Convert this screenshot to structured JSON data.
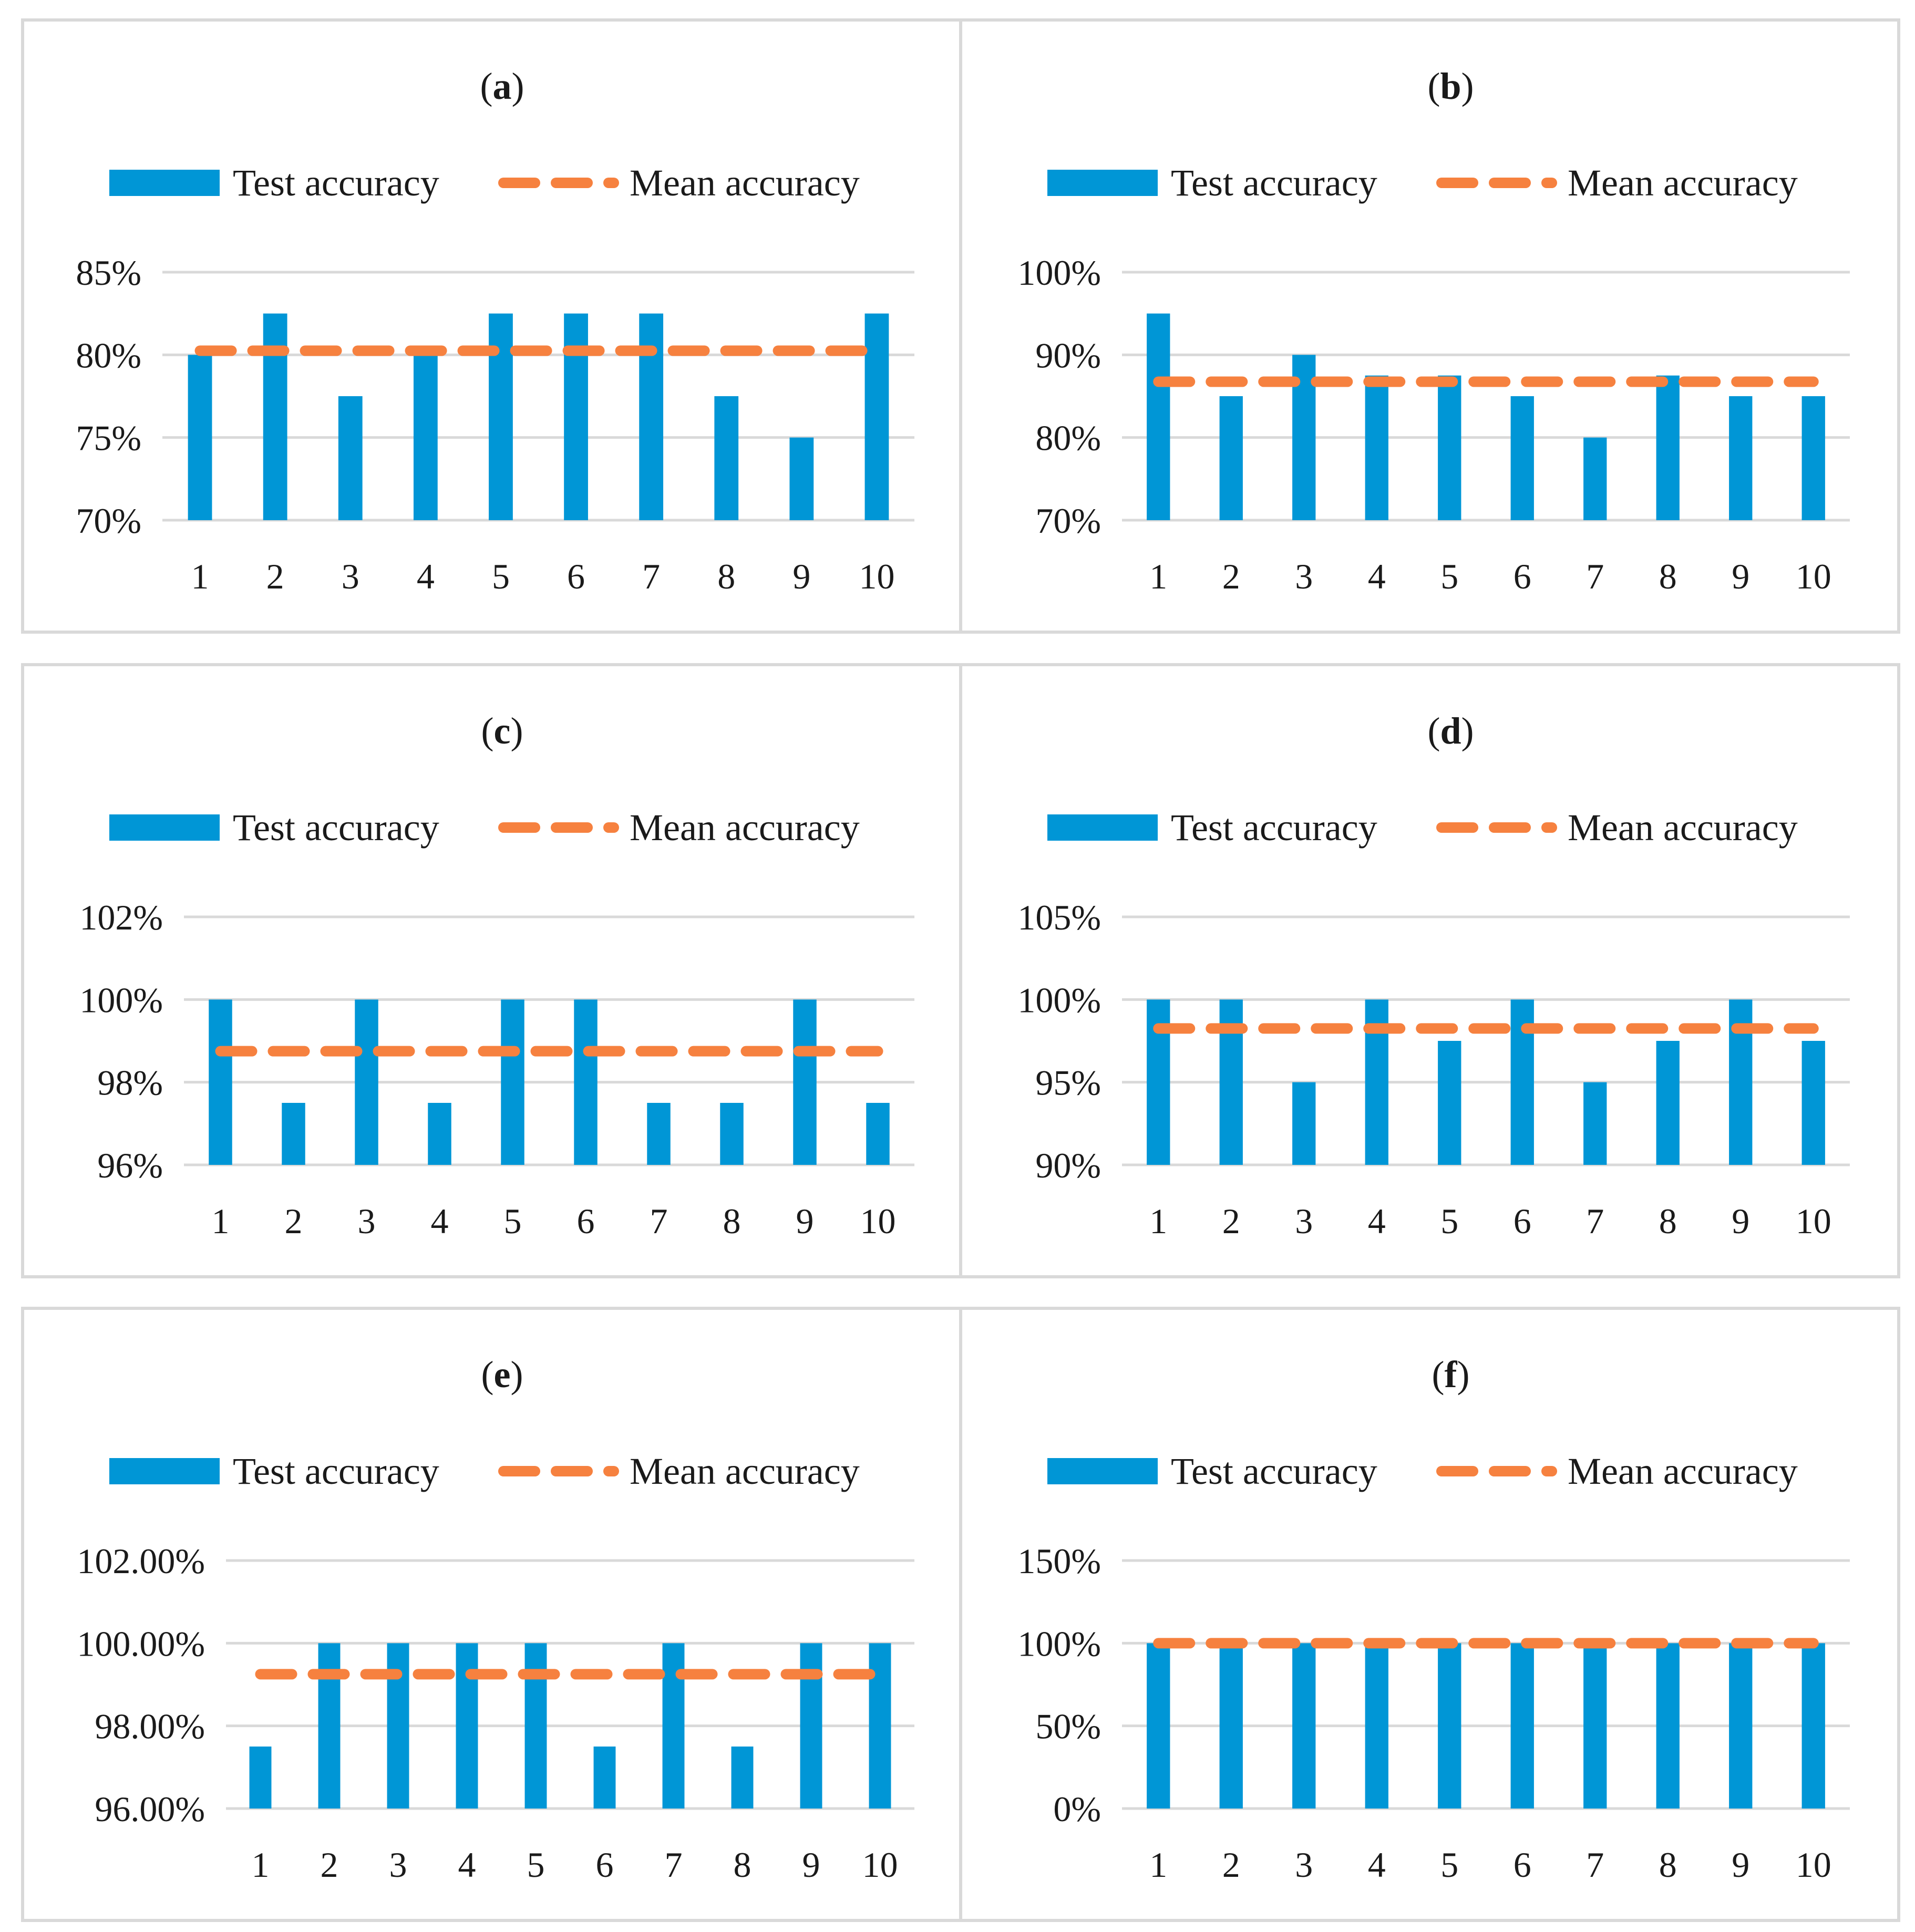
{
  "legend": {
    "bar_label": "Test accuracy",
    "line_label": "Mean accuracy"
  },
  "colors": {
    "bar": "#0096d6",
    "mean_line": "#f6813f",
    "grid": "#d9d9d9",
    "frame": "#d9d9d9"
  },
  "chart_data": [
    {
      "type": "bar",
      "panel": "a",
      "title_open": "(",
      "title_letter": "a",
      "title_close": ")",
      "categories": [
        "1",
        "2",
        "3",
        "4",
        "5",
        "6",
        "7",
        "8",
        "9",
        "10"
      ],
      "series": [
        {
          "name": "Test accuracy",
          "type": "bar",
          "values": [
            80,
            82.5,
            77.5,
            80,
            82.5,
            82.5,
            82.5,
            77.5,
            75,
            82.5
          ]
        },
        {
          "name": "Mean accuracy",
          "type": "line",
          "style": "dashed",
          "values": [
            80.25,
            80.25,
            80.25,
            80.25,
            80.25,
            80.25,
            80.25,
            80.25,
            80.25,
            80.25
          ]
        }
      ],
      "ylim": [
        70,
        85
      ],
      "yticks": [
        70,
        75,
        80,
        85
      ],
      "ytick_labels": [
        "70%",
        "75%",
        "80%",
        "85%"
      ],
      "grid": true,
      "legend_position": "top"
    },
    {
      "type": "bar",
      "panel": "b",
      "title_open": "(",
      "title_letter": "b",
      "title_close": ")",
      "categories": [
        "1",
        "2",
        "3",
        "4",
        "5",
        "6",
        "7",
        "8",
        "9",
        "10"
      ],
      "series": [
        {
          "name": "Test accuracy",
          "type": "bar",
          "values": [
            95,
            85,
            90,
            87.5,
            87.5,
            85,
            80,
            87.5,
            85,
            85
          ]
        },
        {
          "name": "Mean accuracy",
          "type": "line",
          "style": "dashed",
          "values": [
            86.75,
            86.75,
            86.75,
            86.75,
            86.75,
            86.75,
            86.75,
            86.75,
            86.75,
            86.75
          ]
        }
      ],
      "ylim": [
        70,
        100
      ],
      "yticks": [
        70,
        80,
        90,
        100
      ],
      "ytick_labels": [
        "70%",
        "80%",
        "90%",
        "100%"
      ],
      "grid": true,
      "legend_position": "top"
    },
    {
      "type": "bar",
      "panel": "c",
      "title_open": "(",
      "title_letter": "c",
      "title_close": ")",
      "categories": [
        "1",
        "2",
        "3",
        "4",
        "5",
        "6",
        "7",
        "8",
        "9",
        "10"
      ],
      "series": [
        {
          "name": "Test accuracy",
          "type": "bar",
          "values": [
            100,
            97.5,
            100,
            97.5,
            100,
            100,
            97.5,
            97.5,
            100,
            97.5
          ]
        },
        {
          "name": "Mean accuracy",
          "type": "line",
          "style": "dashed",
          "values": [
            98.75,
            98.75,
            98.75,
            98.75,
            98.75,
            98.75,
            98.75,
            98.75,
            98.75,
            98.75
          ]
        }
      ],
      "ylim": [
        96,
        102
      ],
      "yticks": [
        96,
        98,
        100,
        102
      ],
      "ytick_labels": [
        "96%",
        "98%",
        "100%",
        "102%"
      ],
      "grid": true,
      "legend_position": "top"
    },
    {
      "type": "bar",
      "panel": "d",
      "title_open": "(",
      "title_letter": "d",
      "title_close": ")",
      "categories": [
        "1",
        "2",
        "3",
        "4",
        "5",
        "6",
        "7",
        "8",
        "9",
        "10"
      ],
      "series": [
        {
          "name": "Test accuracy",
          "type": "bar",
          "values": [
            100,
            100,
            95,
            100,
            97.5,
            100,
            95,
            97.5,
            100,
            97.5
          ]
        },
        {
          "name": "Mean accuracy",
          "type": "line",
          "style": "dashed",
          "values": [
            98.25,
            98.25,
            98.25,
            98.25,
            98.25,
            98.25,
            98.25,
            98.25,
            98.25,
            98.25
          ]
        }
      ],
      "ylim": [
        90,
        105
      ],
      "yticks": [
        90,
        95,
        100,
        105
      ],
      "ytick_labels": [
        "90%",
        "95%",
        "100%",
        "105%"
      ],
      "grid": true,
      "legend_position": "top"
    },
    {
      "type": "bar",
      "panel": "e",
      "title_open": "(",
      "title_letter": "e",
      "title_close": ")",
      "categories": [
        "1",
        "2",
        "3",
        "4",
        "5",
        "6",
        "7",
        "8",
        "9",
        "10"
      ],
      "series": [
        {
          "name": "Test accuracy",
          "type": "bar",
          "values": [
            97.5,
            100,
            100,
            100,
            100,
            97.5,
            100,
            97.5,
            100,
            100
          ]
        },
        {
          "name": "Mean accuracy",
          "type": "line",
          "style": "dashed",
          "values": [
            99.25,
            99.25,
            99.25,
            99.25,
            99.25,
            99.25,
            99.25,
            99.25,
            99.25,
            99.25
          ]
        }
      ],
      "ylim": [
        96,
        102
      ],
      "yticks": [
        96,
        98,
        100,
        102
      ],
      "ytick_labels": [
        "96.00%",
        "98.00%",
        "100.00%",
        "102.00%"
      ],
      "grid": true,
      "legend_position": "top"
    },
    {
      "type": "bar",
      "panel": "f",
      "title_open": "(",
      "title_letter": "f",
      "title_close": ")",
      "categories": [
        "1",
        "2",
        "3",
        "4",
        "5",
        "6",
        "7",
        "8",
        "9",
        "10"
      ],
      "series": [
        {
          "name": "Test accuracy",
          "type": "bar",
          "values": [
            100,
            100,
            100,
            100,
            100,
            100,
            100,
            100,
            100,
            100
          ]
        },
        {
          "name": "Mean accuracy",
          "type": "line",
          "style": "dashed",
          "values": [
            100,
            100,
            100,
            100,
            100,
            100,
            100,
            100,
            100,
            100
          ]
        }
      ],
      "ylim": [
        0,
        150
      ],
      "yticks": [
        0,
        50,
        100,
        150
      ],
      "ytick_labels": [
        "0%",
        "50%",
        "100%",
        "150%"
      ],
      "grid": true,
      "legend_position": "top"
    }
  ]
}
